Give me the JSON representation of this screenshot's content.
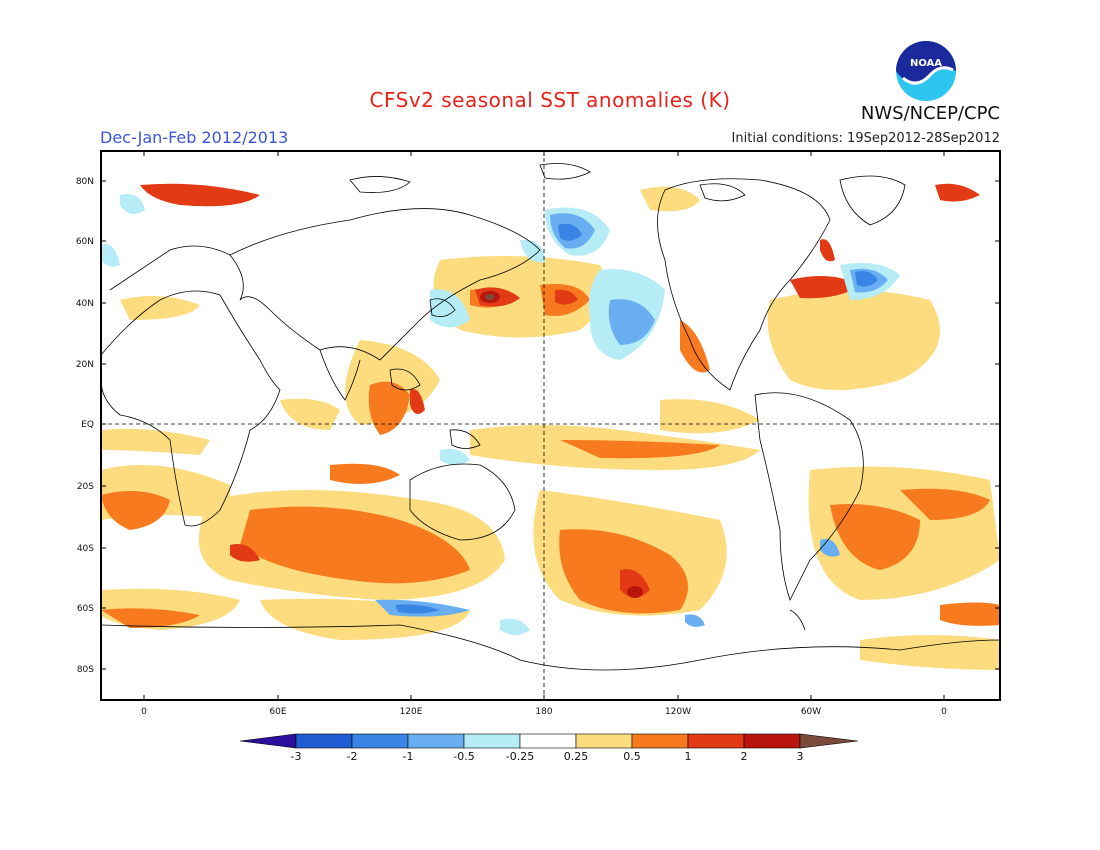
{
  "header": {
    "title": "CFSv2 seasonal SST anomalies (K)",
    "season": "Dec-Jan-Feb 2012/2013",
    "initial_conditions": "Initial conditions: 19Sep2012-28Sep2012",
    "organization": "NWS/NCEP/CPC",
    "logo_text": "NOAA"
  },
  "axes": {
    "lat_labels": [
      "80N",
      "60N",
      "40N",
      "20N",
      "EQ",
      "20S",
      "40S",
      "60S",
      "80S"
    ],
    "lon_labels": [
      "0",
      "60E",
      "120E",
      "180",
      "120W",
      "60W",
      "0"
    ]
  },
  "colorbar": {
    "labels": [
      "-3",
      "-2",
      "-1",
      "-0.5",
      "-0.25",
      "0.25",
      "0.5",
      "1",
      "2",
      "3"
    ],
    "colors": [
      "#2c0f9c",
      "#1f5bd1",
      "#3a84e6",
      "#69aef0",
      "#b5ecf5",
      "#ffffff",
      "#fcdc7f",
      "#f77a1e",
      "#e23a14",
      "#b8160c",
      "#7a4a3a"
    ]
  },
  "colors": {
    "title": "#e8221b",
    "season": "#3b55d8"
  }
}
